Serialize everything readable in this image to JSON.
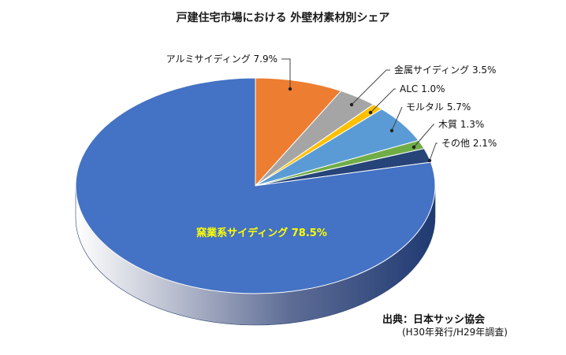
{
  "chart_data": {
    "type": "pie",
    "title": "戸建住宅市場における 外壁材素材別シェア",
    "slices": [
      {
        "label": "アルミサイディング",
        "value_label": "7.9%",
        "value": 7.9,
        "color": "#ED7D31"
      },
      {
        "label": "金属サイディング",
        "value_label": "3.5%",
        "value": 3.5,
        "color": "#A5A5A5"
      },
      {
        "label": "ALC",
        "value_label": "1.0%",
        "value": 1.0,
        "color": "#FFC000"
      },
      {
        "label": "モルタル",
        "value_label": "5.7%",
        "value": 5.7,
        "color": "#5B9BD5"
      },
      {
        "label": "木質",
        "value_label": "1.3%",
        "value": 1.3,
        "color": "#70AD47"
      },
      {
        "label": "その他",
        "value_label": "2.1%",
        "value": 2.1,
        "color": "#264478"
      },
      {
        "label": "窯業系サイディング",
        "value_label": "78.5%",
        "value": 78.5,
        "color": "#4472C4"
      }
    ],
    "style": "3d-pie",
    "inside_label_color": "#FFFF00"
  },
  "source": {
    "main": "出典：日本サッシ協会",
    "sub": "(H30年発行/H29年調査)"
  }
}
